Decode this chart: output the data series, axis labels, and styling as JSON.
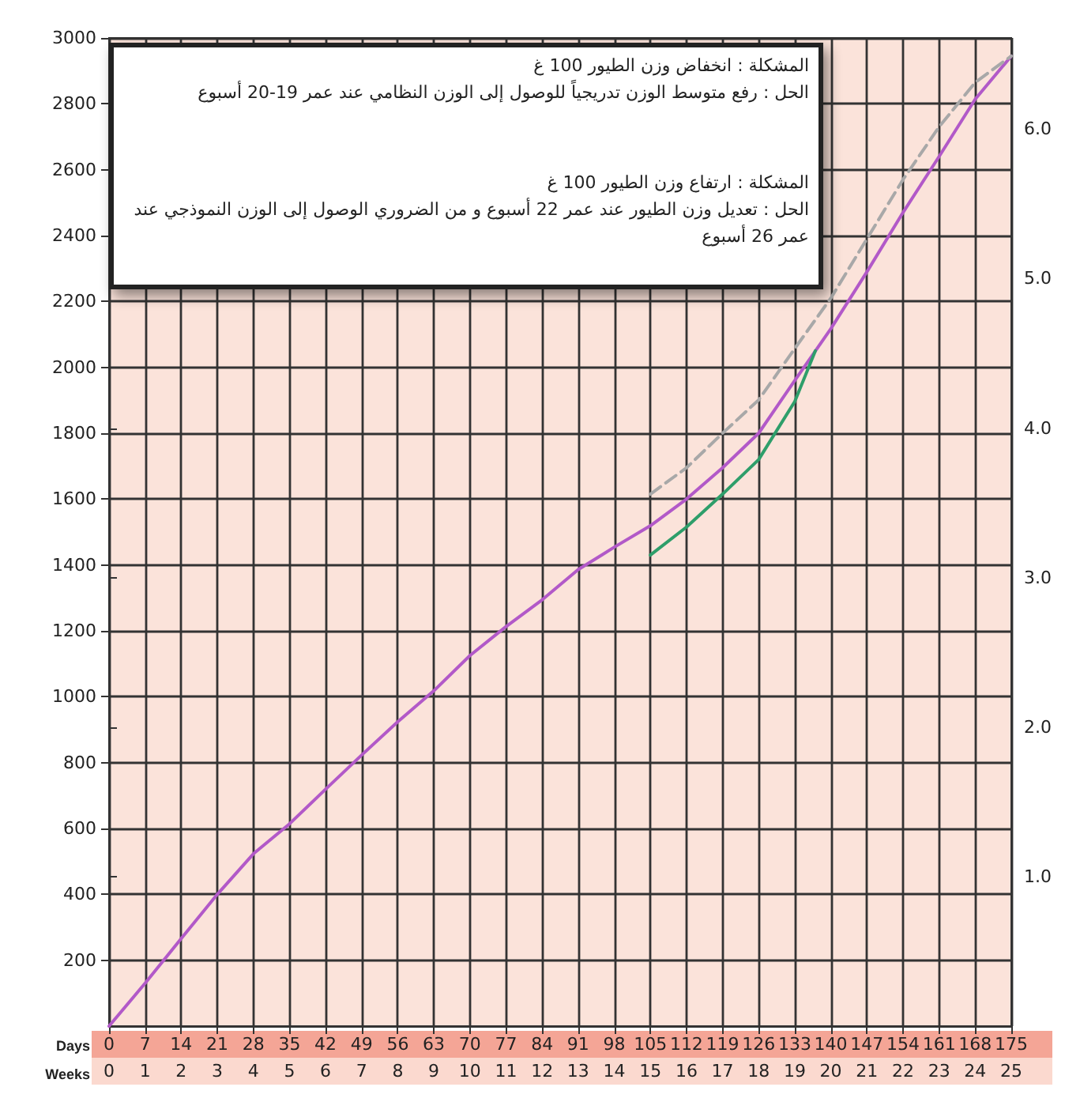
{
  "chart_data": {
    "type": "line",
    "xlabel": "Days",
    "x2label": "Weeks",
    "xlim": [
      0,
      175
    ],
    "xticks": [
      0,
      7,
      14,
      21,
      28,
      35,
      42,
      49,
      56,
      63,
      70,
      77,
      84,
      91,
      98,
      105,
      112,
      119,
      126,
      133,
      140,
      147,
      154,
      161,
      168,
      175
    ],
    "x2lim": [
      0,
      25
    ],
    "x2ticks": [
      0,
      1,
      2,
      3,
      4,
      5,
      6,
      7,
      8,
      9,
      10,
      11,
      12,
      13,
      14,
      15,
      16,
      17,
      18,
      19,
      20,
      21,
      22,
      23,
      24,
      25
    ],
    "ylim": [
      0,
      3000
    ],
    "yticks": [
      200,
      400,
      600,
      800,
      1000,
      1200,
      1400,
      1600,
      1800,
      2000,
      2200,
      2400,
      2600,
      2800,
      3000
    ],
    "y2lim": [
      0,
      6.61
    ],
    "y2ticks": [
      {
        "value": 1,
        "label": "1.0"
      },
      {
        "value": 2,
        "label": "2.0"
      },
      {
        "value": 3,
        "label": "3.0"
      },
      {
        "value": 4,
        "label": "4.0"
      },
      {
        "value": 5,
        "label": "5.0"
      },
      {
        "value": 6,
        "label": "6.0"
      }
    ],
    "grid": true,
    "marker": "none",
    "series": [
      {
        "color": "#b259c8",
        "line_style": "solid",
        "x": [
          0,
          7,
          14,
          21,
          28,
          35,
          42,
          49,
          56,
          63,
          70,
          77,
          84,
          91,
          98,
          105,
          112,
          119,
          126,
          133,
          140,
          147,
          154,
          161,
          168,
          175
        ],
        "values": [
          0,
          130,
          266,
          400,
          523,
          614,
          719,
          823,
          924,
          1018,
          1125,
          1213,
          1294,
          1386,
          1454,
          1519,
          1600,
          1695,
          1800,
          1960,
          2117,
          2290,
          2470,
          2640,
          2814,
          2945
        ]
      },
      {
        "color": "#a8a8a8",
        "line_style": "dashed",
        "x": [
          105,
          112,
          119,
          126,
          133,
          140,
          147,
          154,
          161,
          168,
          175
        ],
        "values": [
          1615,
          1695,
          1800,
          1901,
          2057,
          2210,
          2390,
          2570,
          2730,
          2865,
          2945
        ]
      },
      {
        "color": "#2e9e6a",
        "line_style": "solid",
        "x": [
          105,
          112,
          119,
          126,
          133,
          137
        ],
        "values": [
          1430,
          1515,
          1615,
          1720,
          1896,
          2050
        ]
      }
    ],
    "annotations": [
      "المشكلة : انخفاض وزن الطيور 100 غ",
      "الحل : رفع متوسط الوزن تدريجياً للوصول إلى الوزن النظامي عند عمر 19-20 أسبوع",
      "المشكلة : ارتفاع وزن الطيور 100 غ",
      "الحل : تعديل وزن الطيور عند عمر 22 أسبوع و من الضروري الوصول إلى الوزن النموذجي عند عمر 26 أسبوع"
    ]
  }
}
